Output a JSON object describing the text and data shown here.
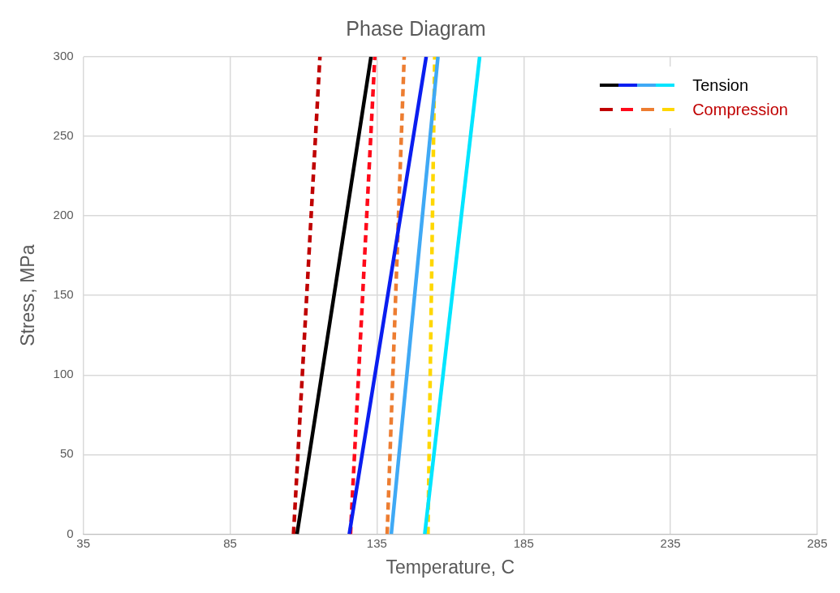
{
  "chart_data": {
    "type": "line",
    "title": "Phase Diagram",
    "xlabel": "Temperature, C",
    "ylabel": "Stress, MPa",
    "xlim": [
      35,
      285
    ],
    "xticks": [
      35,
      85,
      135,
      185,
      235,
      285
    ],
    "ylim": [
      0,
      300
    ],
    "yticks": [
      0,
      50,
      100,
      150,
      200,
      250,
      300
    ],
    "grid": true,
    "legend": "top right",
    "marker": "none",
    "series": [
      {
        "name": "Tension",
        "color": "#000000",
        "line_style": "solid",
        "x": [
          107.8,
          133
        ],
        "values": [
          0,
          300
        ]
      },
      {
        "color": "#0a1ef0",
        "line_style": "solid",
        "x": [
          125.6,
          151.8
        ],
        "values": [
          0,
          300
        ]
      },
      {
        "color": "#3fa9f5",
        "line_style": "solid",
        "x": [
          139.9,
          155.8
        ],
        "values": [
          0,
          300
        ]
      },
      {
        "color": "#00e5ff",
        "line_style": "solid",
        "x": [
          151.3,
          170
        ],
        "values": [
          0,
          300
        ]
      },
      {
        "name": "Compression",
        "color": "#c00000",
        "line_style": "dashed",
        "x": [
          106.6,
          115.6
        ],
        "values": [
          0,
          300
        ]
      },
      {
        "color": "#ff0a1a",
        "line_style": "dashed",
        "x": [
          126,
          134.3
        ],
        "values": [
          0,
          300
        ]
      },
      {
        "color": "#ed7d31",
        "line_style": "dashed",
        "x": [
          138.5,
          144.3
        ],
        "values": [
          0,
          300
        ]
      },
      {
        "color": "#ffd700",
        "line_style": "dashed",
        "x": [
          152.4,
          154.7
        ],
        "values": [
          0,
          300
        ]
      }
    ]
  }
}
